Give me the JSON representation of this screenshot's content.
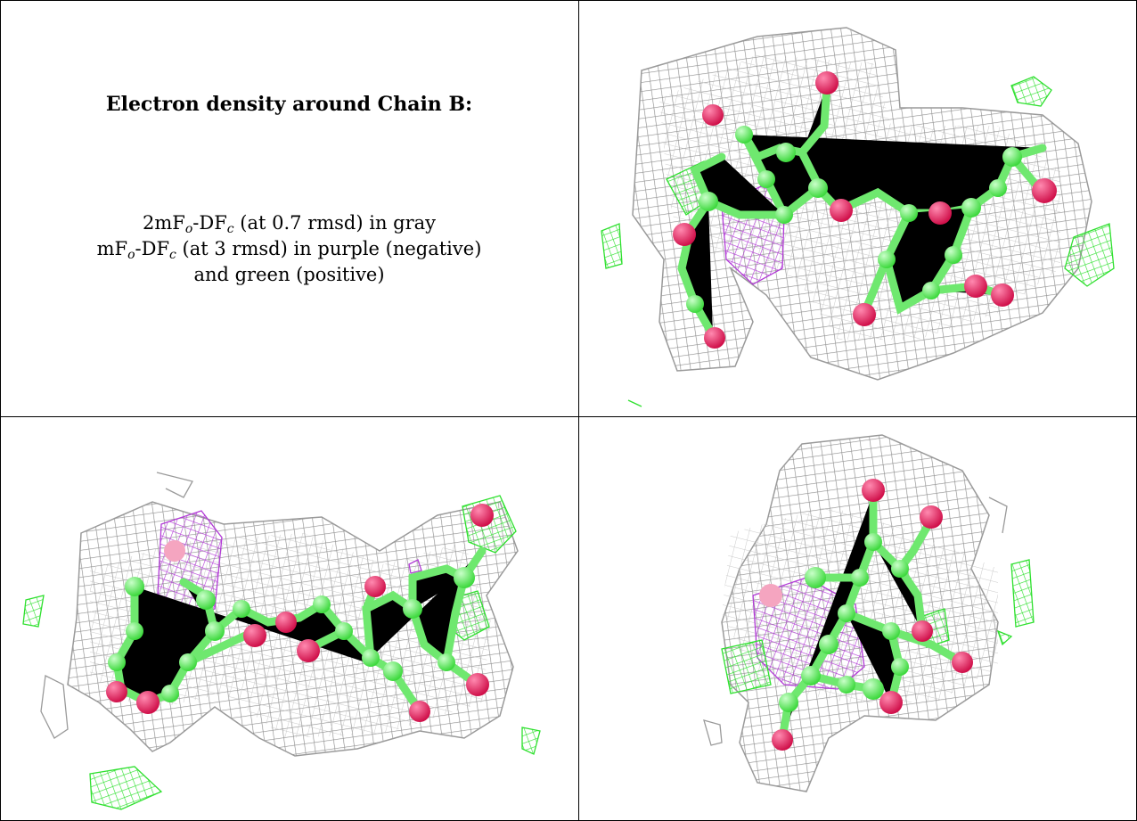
{
  "caption": {
    "title": "Electron density around Chain B:",
    "lines": [
      {
        "pre": "2mF",
        "sub1": "o",
        "mid": "-DF",
        "sub2": "c",
        "post": " (at 0.7 rmsd) in gray"
      },
      {
        "pre": "mF",
        "sub1": "o",
        "mid": "-DF",
        "sub2": "c",
        "post": " (at 3 rmsd) in purple (negative)"
      },
      {
        "text": "and green (positive)"
      }
    ]
  },
  "colors": {
    "map_2fofc": "#8f8f8f",
    "diff_negative": "#b23bd6",
    "diff_positive": "#2ee02e",
    "carbon_atom": "#6fe86f",
    "oxygen_atom": "#e8245f"
  },
  "panels": [
    {
      "name": "view-top-right"
    },
    {
      "name": "view-bottom-left"
    },
    {
      "name": "view-bottom-right"
    }
  ]
}
